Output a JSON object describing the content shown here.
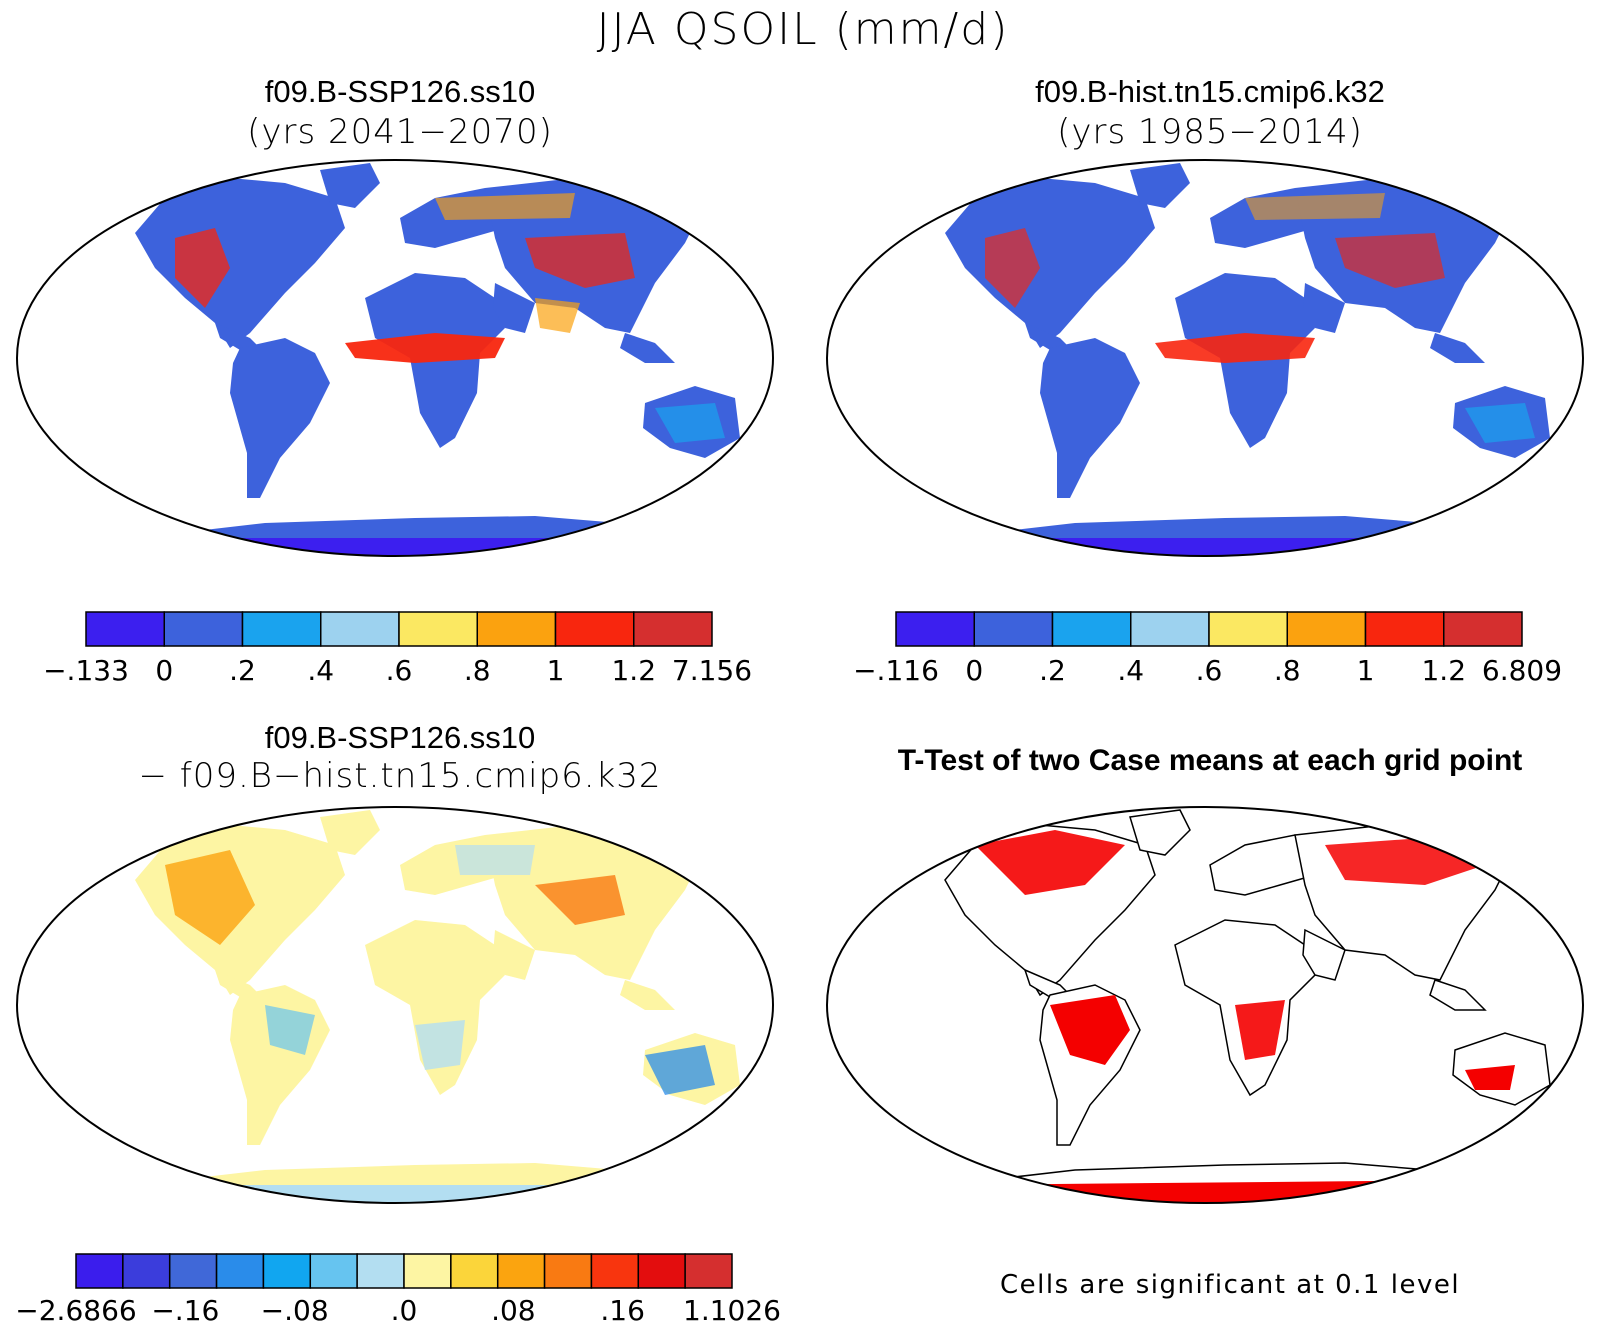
{
  "figure_title": "JJA QSOIL (mm/d)",
  "panels": [
    {
      "id": "ssp126",
      "title": "f09.B-SSP126.ss10",
      "subtitle": "(yrs 2041−2070)",
      "colorbar": {
        "colors": [
          "#3c1fef",
          "#3d62dc",
          "#1aa3ee",
          "#9dd2ef",
          "#fbe862",
          "#fba20f",
          "#f8260e",
          "#d52f2f"
        ],
        "labels": [
          "−.133",
          "0",
          ".2",
          ".4",
          ".6",
          ".8",
          "1",
          "1.2",
          "7.156"
        ]
      }
    },
    {
      "id": "hist",
      "title": "f09.B-hist.tn15.cmip6.k32",
      "subtitle": "(yrs 1985−2014)",
      "colorbar": {
        "colors": [
          "#3c1fef",
          "#3d62dc",
          "#1aa3ee",
          "#9dd2ef",
          "#fbe862",
          "#fba20f",
          "#f8260e",
          "#d52f2f"
        ],
        "labels": [
          "−.116",
          "0",
          ".2",
          ".4",
          ".6",
          ".8",
          "1",
          "1.2",
          "6.809"
        ]
      }
    },
    {
      "id": "diff",
      "title": "f09.B-SSP126.ss10",
      "subtitle": "− f09.B−hist.tn15.cmip6.k32",
      "colorbar": {
        "colors": [
          "#3b1ded",
          "#3b3ddc",
          "#4068d8",
          "#2a8cea",
          "#11a6f0",
          "#66c4f0",
          "#b3def1",
          "#fdf5a3",
          "#fbd53a",
          "#fba40f",
          "#f97a12",
          "#f8350e",
          "#e30d0e",
          "#d52f2f"
        ],
        "labels": [
          "−2.6866",
          "−.16",
          "−.08",
          ".0",
          ".08",
          ".16",
          "1.1026"
        ]
      }
    },
    {
      "id": "ttest",
      "title": "T-Test of two Case means at each grid point",
      "significance_color": "#f40000",
      "footnote": "Cells are significant at 0.1 level"
    }
  ]
}
